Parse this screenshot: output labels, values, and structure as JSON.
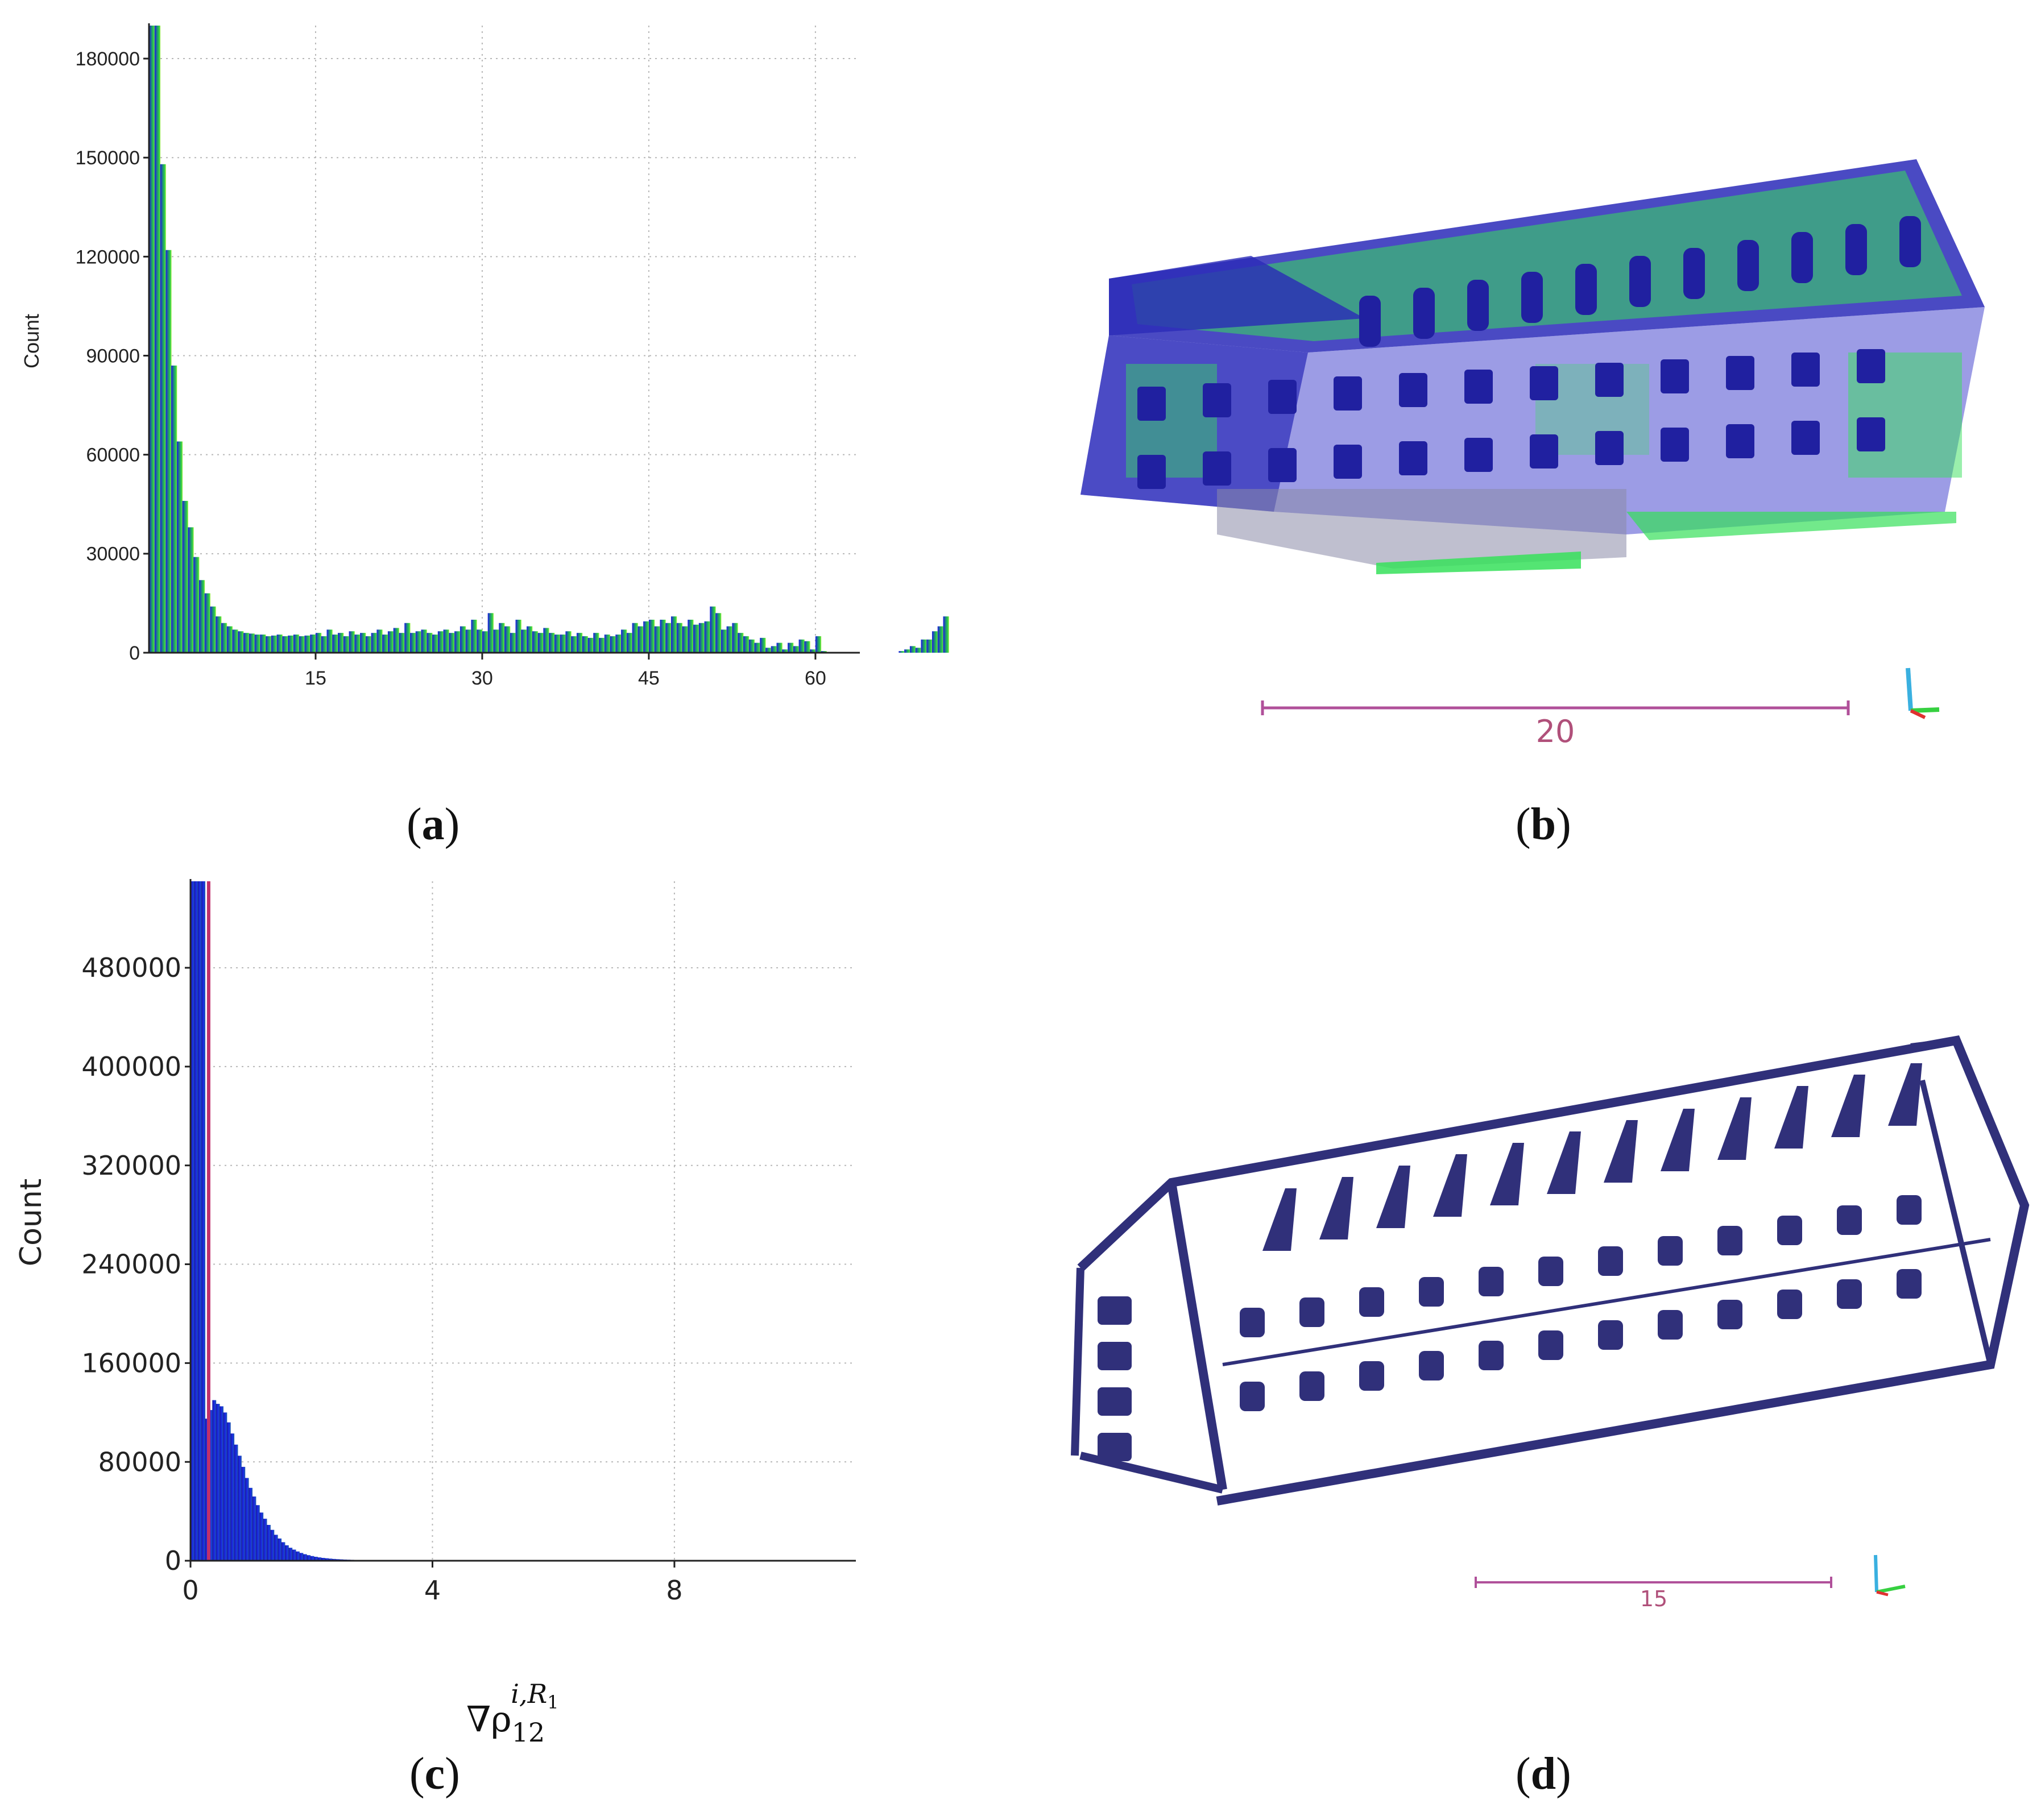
{
  "panels": {
    "a": {
      "label_open": "(",
      "letter": "a",
      "label_close": ")"
    },
    "b": {
      "label_open": "(",
      "letter": "b",
      "label_close": ")"
    },
    "c": {
      "label_open": "(",
      "letter": "c",
      "label_close": ")"
    },
    "d": {
      "label_open": "(",
      "letter": "d",
      "label_close": ")"
    }
  },
  "colors": {
    "bar_blue": "#1a1ae6",
    "bar_teal": "#1f7a8c",
    "bar_green": "#2fd04a",
    "bar_yellowgreen": "#a6f03a",
    "threshold_line": "#c0306a",
    "scale_bar": "#b0509a",
    "points_blue": "#2a2ab8",
    "points_green": "#36e05a",
    "points_navy": "#30307a"
  },
  "scale_bars": {
    "b": "20",
    "d": "15"
  },
  "chart_data": [
    {
      "type": "bar",
      "panel": "a",
      "ylabel": "Count",
      "xlabel": "",
      "xlim": [
        0,
        64
      ],
      "ylim": [
        0,
        190000
      ],
      "xticks": [
        "15",
        "30",
        "45",
        "60"
      ],
      "xtick_values": [
        15,
        30,
        45,
        60
      ],
      "yticks": [
        "0",
        "30000",
        "60000",
        "90000",
        "120000",
        "150000",
        "180000"
      ],
      "ytick_values": [
        0,
        30000,
        60000,
        90000,
        120000,
        150000,
        180000
      ],
      "grid": true,
      "bin_start": 0,
      "bin_width": 0.5,
      "values": [
        190000,
        190000,
        148000,
        122000,
        87000,
        64000,
        46000,
        38000,
        29000,
        22000,
        18000,
        14000,
        11000,
        9000,
        8000,
        7000,
        6500,
        6000,
        5800,
        5500,
        5500,
        5000,
        5200,
        5500,
        5000,
        5200,
        5500,
        5000,
        5200,
        5500,
        6000,
        5000,
        7000,
        5500,
        6000,
        5000,
        6500,
        5500,
        6000,
        5000,
        6000,
        7000,
        5500,
        6500,
        7500,
        6000,
        9000,
        6000,
        6500,
        7000,
        6000,
        5500,
        6500,
        7000,
        6000,
        6500,
        8000,
        7000,
        10000,
        7000,
        6500,
        12000,
        7000,
        9000,
        8000,
        6000,
        10000,
        7000,
        8000,
        6500,
        6000,
        7500,
        6000,
        5500,
        5500,
        6500,
        5000,
        6000,
        5000,
        4500,
        6000,
        4500,
        5500,
        5000,
        5500,
        7000,
        6000,
        9000,
        8000,
        9500,
        10000,
        8000,
        10000,
        9000,
        11000,
        9000,
        8000,
        10000,
        8500,
        9000,
        9500,
        14000,
        12000,
        7000,
        8000,
        9000,
        6000,
        5000,
        4000,
        3000,
        4500,
        1500,
        2000,
        3000,
        1000,
        3000,
        2000,
        4000,
        3500,
        1000,
        5000,
        500,
        0,
        0,
        0,
        0,
        0,
        0,
        0,
        0,
        0,
        0,
        0,
        0,
        0,
        500,
        1000,
        2000,
        1500,
        4000,
        4000,
        6500,
        8000,
        11000
      ]
    },
    {
      "type": "bar",
      "panel": "c",
      "ylabel": "Count",
      "xlabel": "∇ρ",
      "xlabel_sub": "12",
      "xlabel_sup": "i,R",
      "xlabel_sup_sub": "1",
      "xlim": [
        0,
        11
      ],
      "ylim": [
        0,
        550000
      ],
      "xticks": [
        "0",
        "4",
        "8"
      ],
      "xtick_values": [
        0,
        4,
        8
      ],
      "yticks": [
        "0",
        "80000",
        "160000",
        "240000",
        "320000",
        "400000",
        "480000"
      ],
      "ytick_values": [
        0,
        80000,
        160000,
        240000,
        320000,
        400000,
        480000
      ],
      "grid": true,
      "threshold": 0.3,
      "bin_start": 0,
      "bin_width": 0.06,
      "values": [
        550000,
        550000,
        550000,
        550000,
        115000,
        122000,
        130000,
        127000,
        125000,
        120000,
        112000,
        103000,
        94000,
        85000,
        76000,
        67000,
        59000,
        52000,
        45000,
        39000,
        34000,
        29000,
        25000,
        21000,
        18000,
        15000,
        12500,
        10500,
        9000,
        7500,
        6300,
        5300,
        4500,
        3800,
        3200,
        2700,
        2300,
        2000,
        1700,
        1450,
        1250,
        1100,
        950,
        850,
        750,
        650,
        580,
        510,
        450,
        400,
        350,
        310,
        270,
        240,
        210,
        190,
        170,
        150,
        130,
        115,
        100,
        90,
        80,
        70,
        60,
        50,
        45,
        40,
        35,
        30,
        25,
        20,
        20,
        15,
        15,
        10,
        10,
        10,
        5,
        5
      ]
    }
  ]
}
